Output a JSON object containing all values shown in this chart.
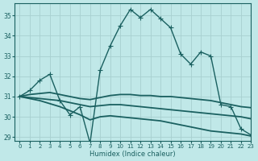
{
  "xlabel": "Humidex (Indice chaleur)",
  "background_color": "#c0e8e8",
  "grid_color": "#a8d0d0",
  "line_color": "#1a6060",
  "xlim": [
    -0.5,
    23
  ],
  "ylim": [
    28.8,
    35.6
  ],
  "yticks": [
    29,
    30,
    31,
    32,
    33,
    34,
    35
  ],
  "xticks": [
    0,
    1,
    2,
    3,
    4,
    5,
    6,
    7,
    8,
    9,
    10,
    11,
    12,
    13,
    14,
    15,
    16,
    17,
    18,
    19,
    20,
    21,
    22,
    23
  ],
  "series": [
    {
      "x": [
        0,
        1,
        2,
        3,
        4,
        5,
        6,
        7,
        8,
        9,
        10,
        11,
        12,
        13,
        14,
        15,
        16,
        17,
        18,
        19,
        20,
        21,
        22,
        23
      ],
      "y": [
        31.0,
        31.3,
        31.8,
        32.1,
        30.8,
        30.1,
        30.5,
        28.7,
        32.3,
        33.5,
        34.5,
        35.3,
        34.9,
        35.3,
        34.85,
        34.4,
        33.1,
        32.6,
        33.2,
        33.0,
        30.6,
        30.5,
        29.4,
        29.1
      ],
      "marker": "+",
      "markersize": 4,
      "linewidth": 1.0
    },
    {
      "x": [
        0,
        1,
        2,
        3,
        4,
        5,
        6,
        7,
        8,
        9,
        10,
        11,
        12,
        13,
        14,
        15,
        16,
        17,
        18,
        19,
        20,
        21,
        22,
        23
      ],
      "y": [
        31.0,
        31.1,
        31.15,
        31.2,
        31.1,
        31.0,
        30.9,
        30.85,
        30.95,
        31.05,
        31.1,
        31.1,
        31.05,
        31.05,
        31.0,
        31.0,
        30.95,
        30.9,
        30.85,
        30.8,
        30.7,
        30.6,
        30.5,
        30.45
      ],
      "marker": "",
      "markersize": 0,
      "linewidth": 1.3
    },
    {
      "x": [
        0,
        1,
        2,
        3,
        4,
        5,
        6,
        7,
        8,
        9,
        10,
        11,
        12,
        13,
        14,
        15,
        16,
        17,
        18,
        19,
        20,
        21,
        22,
        23
      ],
      "y": [
        31.0,
        30.95,
        30.9,
        30.85,
        30.8,
        30.7,
        30.6,
        30.5,
        30.55,
        30.6,
        30.6,
        30.55,
        30.5,
        30.45,
        30.4,
        30.35,
        30.3,
        30.25,
        30.2,
        30.15,
        30.1,
        30.05,
        30.0,
        29.9
      ],
      "marker": "",
      "markersize": 0,
      "linewidth": 1.3
    },
    {
      "x": [
        0,
        1,
        2,
        3,
        4,
        5,
        6,
        7,
        8,
        9,
        10,
        11,
        12,
        13,
        14,
        15,
        16,
        17,
        18,
        19,
        20,
        21,
        22,
        23
      ],
      "y": [
        31.0,
        30.9,
        30.8,
        30.65,
        30.5,
        30.3,
        30.1,
        29.85,
        30.0,
        30.05,
        30.0,
        29.95,
        29.9,
        29.85,
        29.8,
        29.7,
        29.6,
        29.5,
        29.4,
        29.3,
        29.25,
        29.2,
        29.15,
        29.05
      ],
      "marker": "",
      "markersize": 0,
      "linewidth": 1.3
    }
  ]
}
